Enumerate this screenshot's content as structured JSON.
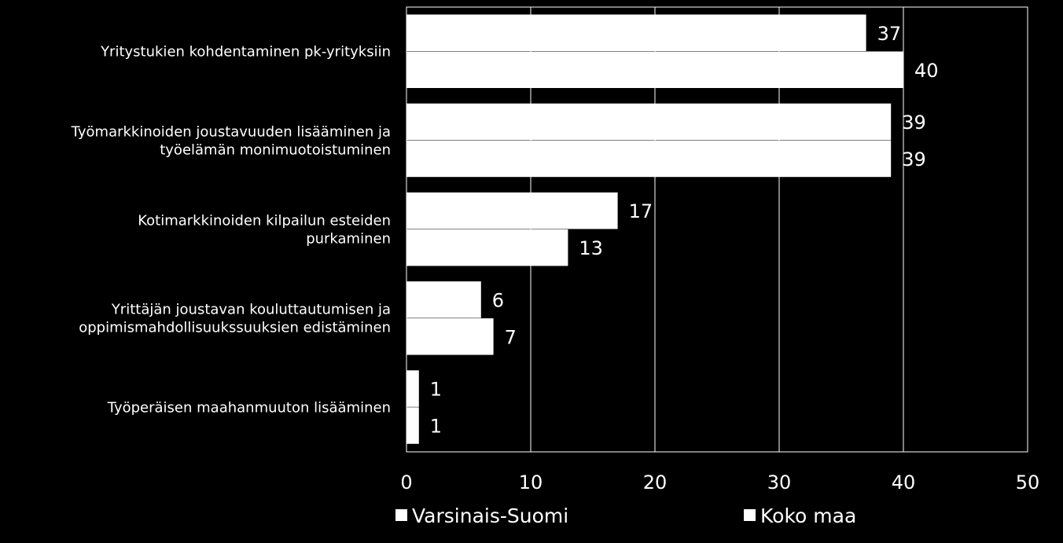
{
  "chart_data": {
    "type": "bar",
    "orientation": "horizontal",
    "title": "",
    "xlabel": "",
    "ylabel": "",
    "categories": [
      [
        "Yritystukien kohdentaminen pk-yrityksiin"
      ],
      [
        "Työmarkkinoiden joustavuuden lisääminen ja",
        "työelämän monimuotoistuminen"
      ],
      [
        "Kotimarkkinoiden kilpailun esteiden",
        "purkaminen"
      ],
      [
        "Yrittäjän joustavan kouluttautumisen ja",
        "oppimismahdollisuukssuuksien edistäminen"
      ],
      [
        "Työperäisen maahanmuuton lisääminen"
      ]
    ],
    "series": [
      {
        "name": "Varsinais-Suomi",
        "values": [
          37,
          39,
          17,
          6,
          1
        ],
        "labels": [
          "37",
          "39",
          "17",
          "6",
          "1"
        ]
      },
      {
        "name": "Koko maa",
        "values": [
          40,
          39,
          13,
          7,
          1
        ],
        "labels": [
          "40",
          "39",
          "13",
          "7",
          "1"
        ]
      }
    ],
    "xlim": [
      0,
      50
    ],
    "xticks": [
      "0",
      "10",
      "20",
      "30",
      "40",
      "50"
    ],
    "grid": true,
    "legend_position": "bottom",
    "colors": {
      "background": "#000000",
      "bars": "#ffffff",
      "grid": "#ffffff",
      "text": "#ffffff"
    }
  }
}
